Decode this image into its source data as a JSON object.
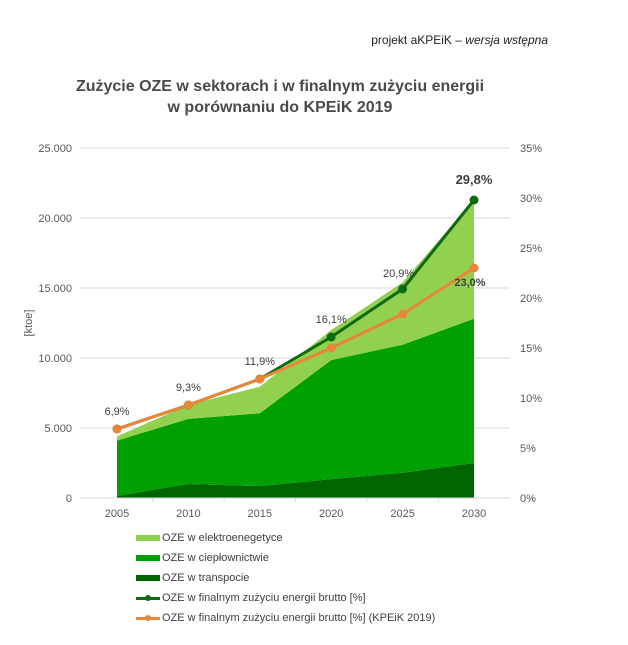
{
  "header": {
    "note_plain": "projekt aKPEiK – ",
    "note_italic": "wersja wstępna"
  },
  "title": {
    "line1": "Zużycie OZE w sektorach i w finalnym zużyciu energii",
    "line2": "w porównaniu do KPEiK 2019"
  },
  "colors": {
    "electricity": "#92d050",
    "heat": "#00a000",
    "transport": "#006400",
    "share": "#0e6a0e",
    "share_kpeik": "#e8873a",
    "grid": "#d9d9d9",
    "axis_text": "#595959"
  },
  "chart_data": {
    "type": "area",
    "title": "Zużycie OZE w sektorach i w finalnym zużyciu energii w porównaniu do KPEiK 2019",
    "categories": [
      "2005",
      "2010",
      "2015",
      "2020",
      "2025",
      "2030"
    ],
    "ylabel": "[ktoe]",
    "ylim": [
      0,
      25000
    ],
    "y_ticks": [
      "0",
      "5.000",
      "10.000",
      "15.000",
      "20.000",
      "25.000"
    ],
    "y2lim": [
      0,
      35
    ],
    "y2_ticks": [
      "0%",
      "5%",
      "10%",
      "15%",
      "20%",
      "25%",
      "30%",
      "35%"
    ],
    "grid": true,
    "legend_position": "bottom",
    "stacked": true,
    "series": [
      {
        "name": "OZE w transpocie",
        "type": "area",
        "axis": "left",
        "values": [
          150,
          1000,
          850,
          1350,
          1800,
          2500
        ]
      },
      {
        "name": "OZE w ciepłownictwie",
        "type": "area",
        "axis": "left",
        "values": [
          3950,
          4650,
          5200,
          8500,
          9150,
          10300
        ]
      },
      {
        "name": "OZE w elektroenegetyce",
        "type": "area",
        "axis": "left",
        "values": [
          300,
          1000,
          1900,
          2150,
          4450,
          8500
        ]
      },
      {
        "name": "OZE w finalnym zużyciu energii brutto [%]",
        "type": "line",
        "axis": "right",
        "values": [
          6.9,
          9.3,
          11.9,
          16.1,
          20.9,
          29.8
        ]
      },
      {
        "name": "OZE w finalnym zużyciu energii brutto [%] (KPEiK 2019)",
        "type": "line",
        "axis": "right",
        "values": [
          6.9,
          9.3,
          11.9,
          15.0,
          18.4,
          23.0
        ]
      }
    ],
    "annotations": [
      {
        "x": "2005",
        "text": "6,9%"
      },
      {
        "x": "2010",
        "text": "9,3%"
      },
      {
        "x": "2015",
        "text": "11,9%"
      },
      {
        "x": "2020",
        "text": "16,1%"
      },
      {
        "x": "2025",
        "text": "20,9%"
      },
      {
        "x": "2030",
        "text": "29,8%",
        "bold": true
      },
      {
        "x": "2030",
        "text": "23,0%",
        "series": "KPEiK 2019"
      }
    ]
  },
  "legend": {
    "items": [
      {
        "label": "OZE w elektroenegetyce",
        "kind": "area",
        "color": "#92d050"
      },
      {
        "label": "OZE w ciepłownictwie",
        "kind": "area",
        "color": "#00a000"
      },
      {
        "label": "OZE w transpocie",
        "kind": "area",
        "color": "#006400"
      },
      {
        "label": "OZE w finalnym zużyciu energii brutto [%]",
        "kind": "line",
        "color": "#0e6a0e"
      },
      {
        "label": "OZE w finalnym zużyciu energii brutto [%] (KPEiK 2019)",
        "kind": "line",
        "color": "#e8873a"
      }
    ]
  }
}
